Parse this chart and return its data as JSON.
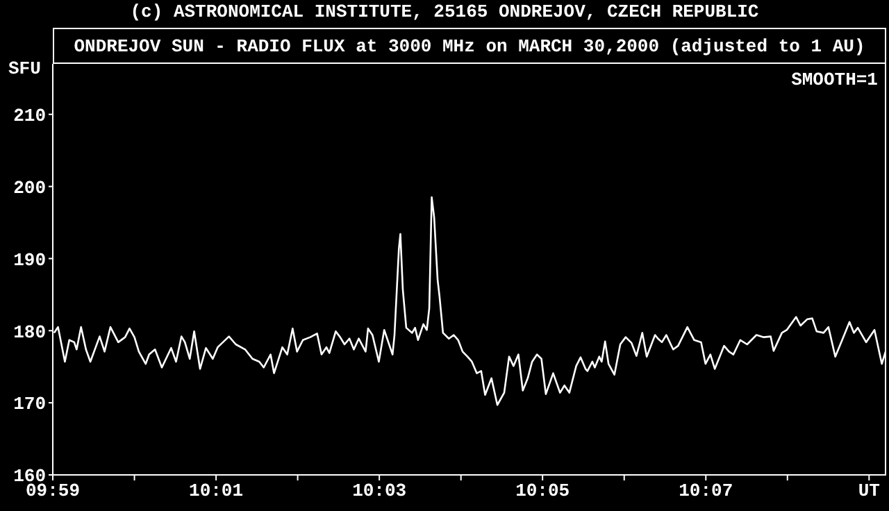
{
  "chart_data": {
    "type": "line",
    "title": "ONDREJOV SUN - RADIO FLUX at 3000 MHz on MARCH 30,2000 (adjusted to 1 AU)",
    "ylabel": "SFU",
    "annotations": [
      "(c) ASTRONOMICAL INSTITUTE, 25165 ONDREJOV, CZECH REPUBLIC",
      "SMOOTH=1"
    ],
    "xlim": [
      9.98333,
      10.1535
    ],
    "ylim": [
      160,
      217
    ],
    "xticks": [
      {
        "value": 9.98333,
        "label": "09:59"
      },
      {
        "value": 10.0,
        "label": null
      },
      {
        "value": 10.01667,
        "label": "10:01"
      },
      {
        "value": 10.03333,
        "label": null
      },
      {
        "value": 10.05,
        "label": "10:03"
      },
      {
        "value": 10.06667,
        "label": null
      },
      {
        "value": 10.08333,
        "label": "10:05"
      },
      {
        "value": 10.1,
        "label": null
      },
      {
        "value": 10.11667,
        "label": "10:07"
      },
      {
        "value": 10.13333,
        "label": null
      },
      {
        "value": 10.15,
        "label": "UT"
      }
    ],
    "yticks": [
      160,
      170,
      180,
      190,
      200,
      210
    ],
    "grid": false,
    "legend": false,
    "marker": "none",
    "line_style": "solid",
    "series": [
      {
        "color": "#ffffff",
        "x": [
          9.9836,
          9.9844,
          9.9858,
          9.9867,
          9.9877,
          9.9882,
          9.9891,
          9.9901,
          9.991,
          9.9929,
          9.9939,
          9.9951,
          9.9967,
          9.9981,
          9.999,
          10.0,
          10.0009,
          10.0023,
          10.003,
          10.0042,
          10.0056,
          10.0075,
          10.0085,
          10.0096,
          10.0103,
          10.0113,
          10.0122,
          10.0134,
          10.0146,
          10.016,
          10.017,
          10.0193,
          10.0207,
          10.0226,
          10.0241,
          10.0255,
          10.0264,
          10.0278,
          10.0285,
          10.0302,
          10.0312,
          10.0323,
          10.0332,
          10.0344,
          10.0359,
          10.0373,
          10.0382,
          10.0392,
          10.0398,
          10.0411,
          10.042,
          10.0429,
          10.0439,
          10.0448,
          10.0458,
          10.0472,
          10.0477,
          10.0486,
          10.0499,
          10.051,
          10.0527,
          10.0531,
          10.054,
          10.0543,
          10.0548,
          10.0555,
          10.0567,
          10.0573,
          10.0579,
          10.059,
          10.0597,
          10.0602,
          10.0607,
          10.0612,
          10.0619,
          10.0623,
          10.063,
          10.0642,
          10.0652,
          10.0661,
          10.067,
          10.068,
          10.0689,
          10.0699,
          10.0708,
          10.0716,
          10.0729,
          10.0741,
          10.0755,
          10.0765,
          10.0774,
          10.0784,
          10.0793,
          10.0803,
          10.0812,
          10.0822,
          10.0831,
          10.084,
          10.0855,
          10.0869,
          10.0878,
          10.0888,
          10.0902,
          10.0911,
          10.0921,
          10.0925,
          10.0935,
          10.094,
          10.0949,
          10.0954,
          10.0961,
          10.0968,
          10.098,
          10.0992,
          10.1003,
          10.1015,
          10.1025,
          10.1037,
          10.1046,
          10.1063,
          10.1069,
          10.1077,
          10.1086,
          10.11,
          10.111,
          10.1129,
          10.1143,
          10.1157,
          10.1166,
          10.1176,
          10.1185,
          10.1204,
          10.1214,
          10.1223,
          10.1237,
          10.1251,
          10.127,
          10.1285,
          10.1299,
          10.1305,
          10.1322,
          10.1332,
          10.1351,
          10.136,
          10.1374,
          10.1384,
          10.1393,
          10.1407,
          10.1417,
          10.1431,
          10.1445,
          10.146,
          10.1469,
          10.1477,
          10.1494,
          10.1504,
          10.1511,
          10.1526,
          10.1535
        ],
        "values": [
          179.7,
          180.5,
          175.7,
          178.7,
          178.4,
          177.4,
          180.5,
          177.4,
          175.7,
          179.2,
          177.1,
          180.5,
          178.4,
          179.1,
          180.3,
          179.1,
          177.1,
          175.4,
          176.7,
          177.4,
          174.9,
          177.6,
          175.7,
          179.2,
          178.4,
          176.1,
          179.9,
          174.7,
          177.6,
          176.1,
          177.7,
          179.2,
          178.1,
          177.4,
          176.1,
          175.7,
          174.9,
          176.7,
          174.1,
          177.7,
          176.7,
          180.3,
          177.1,
          178.7,
          179.1,
          179.6,
          176.7,
          177.7,
          176.9,
          179.9,
          179.1,
          178.1,
          178.9,
          177.4,
          178.9,
          177.1,
          180.3,
          179.4,
          175.7,
          180.1,
          176.7,
          179.4,
          191.4,
          193.4,
          185.7,
          180.4,
          179.7,
          180.4,
          178.7,
          180.9,
          180.1,
          183.1,
          198.5,
          195.7,
          187.1,
          184.7,
          179.7,
          178.9,
          179.4,
          178.7,
          177.1,
          176.4,
          175.7,
          174.1,
          174.4,
          171.1,
          173.4,
          169.7,
          171.4,
          176.4,
          175.1,
          176.7,
          171.7,
          173.4,
          175.7,
          176.7,
          176.1,
          171.2,
          174.1,
          171.4,
          172.4,
          171.4,
          175.1,
          176.3,
          174.7,
          174.4,
          175.7,
          174.9,
          176.4,
          175.7,
          178.5,
          175.4,
          173.9,
          178.1,
          179.1,
          178.3,
          176.5,
          179.7,
          176.4,
          179.4,
          178.9,
          178.4,
          179.4,
          177.4,
          177.9,
          180.5,
          178.7,
          178.4,
          175.4,
          176.7,
          174.7,
          177.9,
          177.1,
          176.7,
          178.7,
          178.1,
          179.4,
          179.1,
          179.2,
          177.2,
          179.7,
          180.1,
          181.9,
          180.7,
          181.6,
          181.7,
          179.9,
          179.7,
          180.5,
          176.4,
          178.7,
          181.2,
          179.7,
          180.4,
          178.4,
          179.4,
          180.1,
          175.4,
          177.4
        ]
      }
    ]
  }
}
